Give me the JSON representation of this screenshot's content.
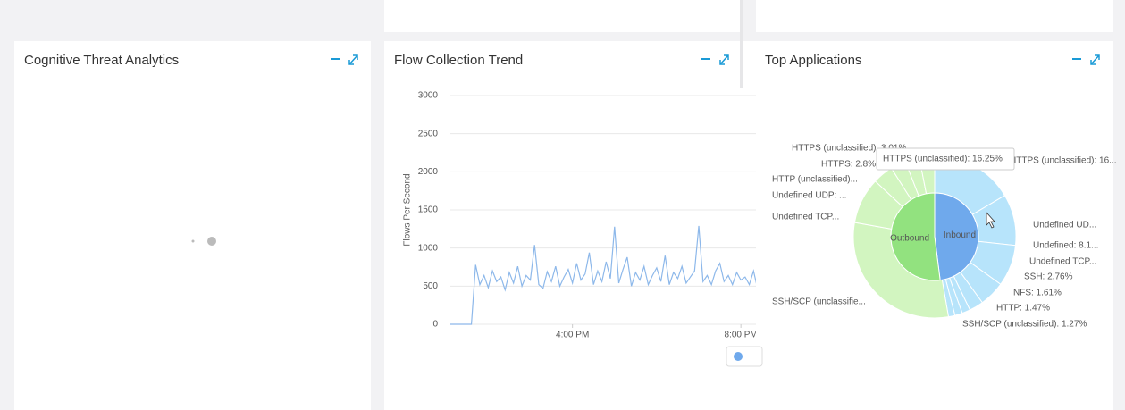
{
  "panels": [
    {
      "title": "Cognitive Threat Analytics"
    },
    {
      "title": "Flow Collection Trend",
      "chart_data": {
        "type": "line",
        "y_label": "Flows Per Second",
        "ylim": [
          0,
          3000
        ],
        "yticks": [
          0,
          500,
          1000,
          1500,
          2000,
          2500,
          3000
        ],
        "xlim": [
          13.1,
          20.4
        ],
        "xticks": [
          {
            "value": 16,
            "label": "4:00 PM"
          },
          {
            "value": 20,
            "label": "8:00 PM"
          }
        ],
        "grid": true,
        "series": [
          {
            "color": "#8db8ea",
            "x": [
              13.1,
              13.2,
              13.3,
              13.4,
              13.5,
              13.6,
              13.7,
              13.8,
              13.9,
              14.0,
              14.1,
              14.2,
              14.3,
              14.4,
              14.5,
              14.6,
              14.7,
              14.8,
              14.9,
              15.0,
              15.1,
              15.2,
              15.3,
              15.4,
              15.5,
              15.6,
              15.7,
              15.8,
              15.9,
              16.0,
              16.1,
              16.2,
              16.3,
              16.4,
              16.5,
              16.6,
              16.7,
              16.8,
              16.9,
              17.0,
              17.1,
              17.2,
              17.3,
              17.4,
              17.5,
              17.6,
              17.7,
              17.8,
              17.9,
              18.0,
              18.1,
              18.2,
              18.3,
              18.4,
              18.5,
              18.6,
              18.7,
              18.8,
              18.9,
              19.0,
              19.1,
              19.2,
              19.3,
              19.4,
              19.5,
              19.6,
              19.7,
              19.8,
              19.9,
              20.0,
              20.1,
              20.2,
              20.3,
              20.4
            ],
            "values": [
              0,
              0,
              0,
              0,
              0,
              0,
              780,
              520,
              640,
              480,
              700,
              560,
              620,
              450,
              680,
              540,
              760,
              500,
              640,
              580,
              1040,
              520,
              470,
              690,
              560,
              760,
              500,
              620,
              720,
              540,
              800,
              580,
              660,
              940,
              520,
              700,
              560,
              820,
              600,
              1280,
              540,
              720,
              880,
              500,
              680,
              580,
              760,
              520,
              640,
              740,
              560,
              900,
              520,
              680,
              600,
              760,
              540,
              620,
              700,
              1290,
              560,
              640,
              520,
              700,
              800,
              560,
              640,
              520,
              680,
              580,
              620,
              520,
              700,
              460
            ]
          }
        ]
      }
    },
    {
      "title": "Top Applications",
      "chart_data": {
        "type": "sunburst",
        "inner": {
          "categories": [
            "Inbound",
            "Outbound"
          ],
          "values": [
            48,
            52
          ],
          "colors": [
            "#6fa9ec",
            "#92e27f"
          ]
        },
        "outer": {
          "labels": [
            "HTTPS (unclassified): 16...",
            "Undefined UD...",
            "Undefined: 8.1...",
            "Undefined TCP...",
            "SSH: 2.76%",
            "NFS: 1.61%",
            "HTTP: 1.47%",
            "SSH/SCP (unclassified): 1.27%",
            "SSH/SCP (unclassifie...",
            "Undefined TCP...",
            "Undefined UDP: ...",
            "HTTP (unclassified)...",
            "HTTPS: 2.8%",
            "HTTPS (unclassified): 3.01%"
          ],
          "values": [
            16.25,
            10,
            8.1,
            5,
            2.76,
            1.61,
            1.47,
            1.27,
            30,
            9,
            4,
            3,
            2.8,
            3.01
          ],
          "ring": [
            0,
            0,
            0,
            0,
            0,
            0,
            0,
            0,
            1,
            1,
            1,
            1,
            1,
            1
          ],
          "colors": [
            "#b7e4fb",
            "#c7ecfd"
          ]
        },
        "tooltip": "HTTPS (unclassified): 16.25%"
      }
    }
  ]
}
